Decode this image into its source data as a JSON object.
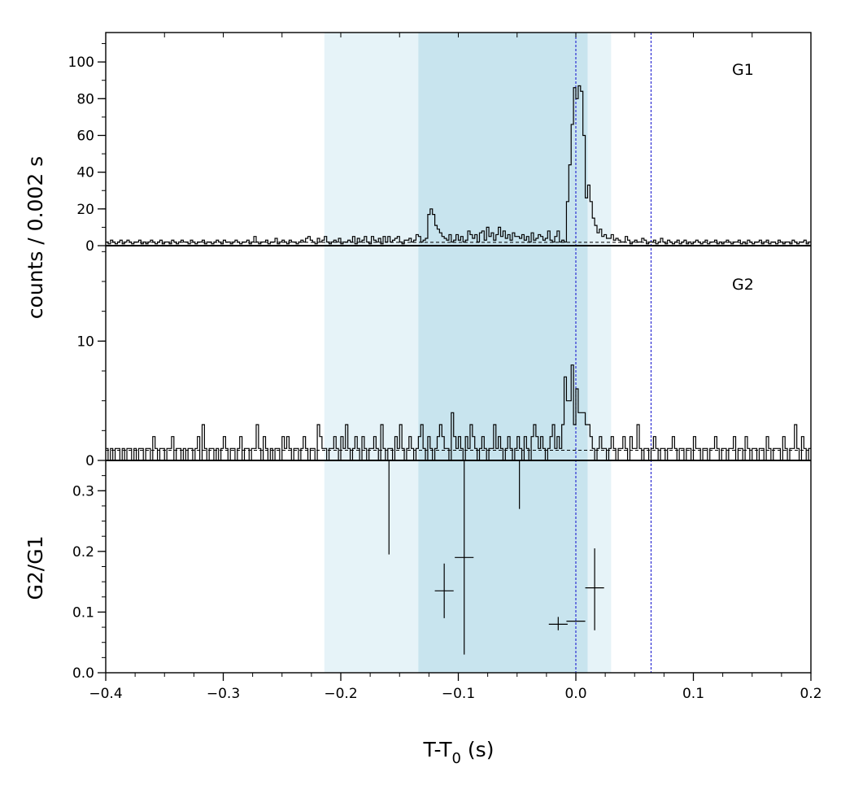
{
  "chart_data": [
    {
      "panel": "G1",
      "type": "line",
      "style": "step histogram",
      "tag": "G1",
      "ylabel": "counts /  0.002 s",
      "ylim": [
        0,
        116
      ],
      "yticks": [
        0,
        20,
        40,
        60,
        80,
        100
      ],
      "xlim": [
        -0.4,
        0.2
      ],
      "x_start": -0.4,
      "bin_width": 0.002,
      "background_level": 1.8,
      "values": [
        2,
        1,
        3,
        2,
        1,
        2,
        3,
        1,
        2,
        3,
        2,
        1,
        2,
        2,
        3,
        1,
        2,
        1,
        2,
        3,
        2,
        1,
        2,
        3,
        1,
        2,
        2,
        1,
        3,
        2,
        1,
        2,
        3,
        2,
        2,
        1,
        3,
        2,
        1,
        2,
        2,
        3,
        1,
        2,
        2,
        1,
        2,
        3,
        2,
        1,
        3,
        2,
        2,
        1,
        2,
        3,
        2,
        1,
        2,
        2,
        3,
        1,
        2,
        5,
        2,
        1,
        2,
        2,
        3,
        1,
        2,
        2,
        4,
        1,
        2,
        3,
        2,
        1,
        3,
        2,
        2,
        1,
        2,
        3,
        2,
        4,
        5,
        3,
        2,
        1,
        4,
        2,
        3,
        5,
        2,
        1,
        2,
        3,
        2,
        4,
        1,
        2,
        2,
        3,
        2,
        5,
        1,
        4,
        2,
        3,
        5,
        2,
        1,
        5,
        3,
        2,
        4,
        1,
        5,
        2,
        5,
        2,
        3,
        4,
        5,
        2,
        1,
        3,
        3,
        4,
        2,
        3,
        6,
        5,
        2,
        3,
        4,
        17,
        20,
        17,
        11,
        9,
        7,
        5,
        4,
        3,
        6,
        2,
        3,
        6,
        3,
        5,
        2,
        3,
        8,
        6,
        4,
        6,
        2,
        7,
        8,
        3,
        10,
        5,
        7,
        3,
        6,
        10,
        5,
        8,
        4,
        6,
        3,
        7,
        5,
        5,
        4,
        6,
        3,
        5,
        2,
        7,
        3,
        4,
        6,
        5,
        3,
        4,
        8,
        3,
        2,
        5,
        8,
        2,
        3,
        2,
        24,
        44,
        66,
        86,
        80,
        87,
        84,
        60,
        26,
        33,
        24,
        15,
        11,
        7,
        9,
        5,
        6,
        4,
        4,
        6,
        3,
        4,
        3,
        2,
        2,
        5,
        3,
        1,
        2,
        3,
        2,
        2,
        4,
        3,
        1,
        2,
        2,
        3,
        1,
        2,
        4,
        2,
        1,
        3,
        2,
        1,
        2,
        3,
        1,
        2,
        3,
        1,
        2,
        1,
        2,
        3,
        2,
        1,
        2,
        3,
        1,
        2,
        2,
        3,
        1,
        2,
        1,
        2,
        3,
        2,
        1,
        2,
        2,
        3,
        1,
        2,
        1,
        3,
        2,
        1,
        2,
        2,
        3,
        1,
        2,
        3,
        1,
        2,
        2,
        1,
        3,
        2,
        1,
        2,
        2,
        1,
        3,
        2,
        1,
        2,
        2,
        3,
        1,
        2
      ]
    },
    {
      "panel": "G2",
      "type": "line",
      "style": "step histogram",
      "tag": "G2",
      "ylim": [
        0,
        18
      ],
      "yticks": [
        0,
        10
      ],
      "xlim": [
        -0.4,
        0.2
      ],
      "x_start": -0.4,
      "bin_width": 0.002,
      "background_level": 0.85,
      "values": [
        1,
        0,
        1,
        0,
        1,
        1,
        0,
        1,
        0,
        1,
        1,
        0,
        1,
        0,
        1,
        1,
        0,
        1,
        1,
        0,
        2,
        1,
        0,
        1,
        1,
        0,
        1,
        1,
        2,
        0,
        1,
        1,
        0,
        1,
        0,
        1,
        1,
        0,
        1,
        2,
        0,
        3,
        1,
        0,
        1,
        1,
        0,
        1,
        0,
        1,
        2,
        1,
        0,
        1,
        1,
        0,
        1,
        2,
        0,
        1,
        1,
        0,
        1,
        1,
        3,
        1,
        0,
        2,
        1,
        0,
        1,
        0,
        1,
        1,
        0,
        2,
        1,
        2,
        1,
        0,
        1,
        1,
        0,
        1,
        2,
        1,
        0,
        1,
        1,
        0,
        3,
        2,
        1,
        1,
        0,
        1,
        1,
        2,
        1,
        0,
        2,
        1,
        3,
        1,
        0,
        1,
        2,
        1,
        0,
        2,
        1,
        0,
        1,
        1,
        2,
        1,
        0,
        3,
        1,
        0,
        1,
        1,
        0,
        2,
        1,
        3,
        1,
        0,
        1,
        2,
        1,
        0,
        1,
        2,
        3,
        1,
        0,
        2,
        1,
        0,
        1,
        2,
        3,
        2,
        1,
        1,
        0,
        4,
        2,
        1,
        2,
        1,
        0,
        2,
        1,
        3,
        2,
        1,
        0,
        1,
        2,
        1,
        0,
        1,
        1,
        3,
        1,
        2,
        1,
        0,
        1,
        2,
        1,
        0,
        1,
        2,
        1,
        0,
        2,
        1,
        0,
        2,
        3,
        2,
        1,
        2,
        1,
        0,
        1,
        2,
        3,
        1,
        2,
        1,
        3,
        7,
        5,
        5,
        8,
        3,
        6,
        4,
        4,
        4,
        3,
        3,
        2,
        1,
        0,
        1,
        2,
        1,
        1,
        0,
        1,
        2,
        1,
        0,
        1,
        1,
        2,
        1,
        0,
        2,
        1,
        1,
        3,
        1,
        0,
        1,
        1,
        0,
        1,
        2,
        1,
        0,
        1,
        1,
        0,
        1,
        1,
        2,
        1,
        0,
        1,
        1,
        0,
        1,
        1,
        0,
        2,
        1,
        1,
        0,
        1,
        1,
        0,
        1,
        1,
        2,
        1,
        0,
        1,
        1,
        0,
        1,
        1,
        2,
        0,
        1,
        1,
        0,
        2,
        1,
        0,
        1,
        1,
        0,
        1,
        1,
        0,
        2,
        1,
        0,
        1,
        1,
        1,
        0,
        2,
        1,
        0,
        1,
        1,
        3,
        1,
        0,
        2,
        1,
        0,
        1
      ]
    },
    {
      "panel": "ratio",
      "type": "scatter",
      "style": "error bars",
      "ylabel": "G2/G1",
      "xlabel": "T-T0 (s)",
      "ylim": [
        0,
        0.35
      ],
      "yticks": [
        0.0,
        0.1,
        0.2,
        0.3
      ],
      "yticklabels": [
        "0.0",
        "0.1",
        "0.2",
        "0.3"
      ],
      "xlim": [
        -0.4,
        0.2
      ],
      "xticks": [
        -0.4,
        -0.3,
        -0.2,
        -0.1,
        0.0,
        0.1,
        0.2
      ],
      "xticklabels": [
        "−0.4",
        "−0.3",
        "−0.2",
        "−0.1",
        "0.0",
        "0.1",
        "0.2"
      ],
      "points": [
        {
          "x": -0.159,
          "y_low": 0.195,
          "y_high": 0.35,
          "x_err": 0
        },
        {
          "x": -0.112,
          "y": 0.135,
          "y_low": 0.09,
          "y_high": 0.18,
          "x_err": 0.008
        },
        {
          "x": -0.095,
          "y": 0.19,
          "y_low": 0.03,
          "y_high": 0.35,
          "x_err": 0.008
        },
        {
          "x": -0.048,
          "y_low": 0.27,
          "y_high": 0.35,
          "x_err": 0
        },
        {
          "x": -0.015,
          "y": 0.08,
          "y_low": 0.07,
          "y_high": 0.092,
          "x_err": 0.008
        },
        {
          "x": 0.0,
          "y": 0.085,
          "y_low": 0.085,
          "y_high": 0.085,
          "x_err": 0.008
        },
        {
          "x": 0.016,
          "y": 0.14,
          "y_low": 0.07,
          "y_high": 0.205,
          "x_err": 0.008
        }
      ]
    }
  ],
  "shaded_intervals": [
    {
      "x0": -0.214,
      "x1": 0.03,
      "color": "#e6f3f8"
    },
    {
      "x0": -0.134,
      "x1": 0.01,
      "color": "#c8e4ee"
    }
  ],
  "vertical_markers": [
    {
      "x": 0.0,
      "color": "#1f1fd0"
    },
    {
      "x": 0.064,
      "color": "#1f1fd0"
    }
  ],
  "colors": {
    "histogram": "#000000",
    "background_line": "#000000",
    "marker": "#1f1fd0"
  },
  "labels": {
    "ylabel_counts": "counts /  0.002 s",
    "ylabel_ratio": "G2/G1",
    "xlabel_main": "T-T",
    "xlabel_sub": "0",
    "xlabel_units": " (s)",
    "tag_g1": "G1",
    "tag_g2": "G2"
  }
}
